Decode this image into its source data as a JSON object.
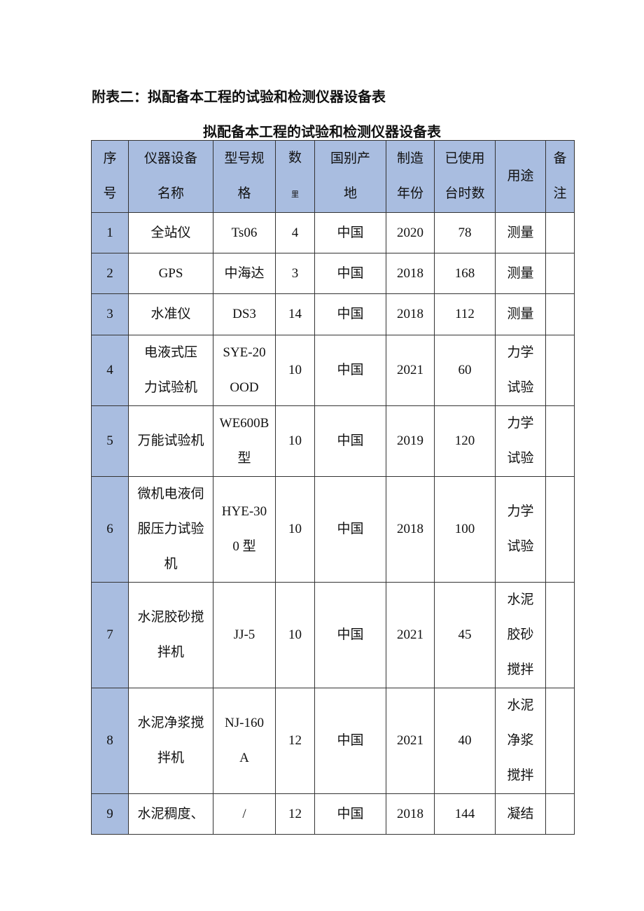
{
  "heading": "附表二：拟配备本工程的试验和检测仪器设备表",
  "caption": "拟配备本工程的试验和检测仪器设备表",
  "colors": {
    "header_bg": "#a9bde0",
    "border": "#333333"
  },
  "table": {
    "headers": [
      "序\n号",
      "仪器设备\n名称",
      "型号规\n格",
      "数",
      "国别产\n地",
      "制造\n年份",
      "已使用\n台时数",
      "用途",
      "备\n注"
    ],
    "header_qty_sub": "里",
    "rows": [
      [
        "1",
        "全站仪",
        "Ts06",
        "4",
        "中国",
        "2020",
        "78",
        "测量",
        ""
      ],
      [
        "2",
        "GPS",
        "中海达",
        "3",
        "中国",
        "2018",
        "168",
        "测量",
        ""
      ],
      [
        "3",
        "水准仪",
        "DS3",
        "14",
        "中国",
        "2018",
        "112",
        "测量",
        ""
      ],
      [
        "4",
        "电液式压\n力试验机",
        "SYE-20\nOOD",
        "10",
        "中国",
        "2021",
        "60",
        "力学\n试验",
        ""
      ],
      [
        "5",
        "万能试验机",
        "WE600B\n型",
        "10",
        "中国",
        "2019",
        "120",
        "力学\n试验",
        ""
      ],
      [
        "6",
        "微机电液伺\n服压力试验\n机",
        "HYE-30\n0 型",
        "10",
        "中国",
        "2018",
        "100",
        "力学\n试验",
        ""
      ],
      [
        "7",
        "水泥胶砂搅\n拌机",
        "JJ-5",
        "10",
        "中国",
        "2021",
        "45",
        "水泥\n胶砂\n搅拌",
        ""
      ],
      [
        "8",
        "水泥净浆搅\n拌机",
        "NJ-160\nA",
        "12",
        "中国",
        "2021",
        "40",
        "水泥\n净浆\n搅拌",
        ""
      ],
      [
        "9",
        "水泥稠度、",
        "/",
        "12",
        "中国",
        "2018",
        "144",
        "凝结",
        ""
      ]
    ]
  }
}
